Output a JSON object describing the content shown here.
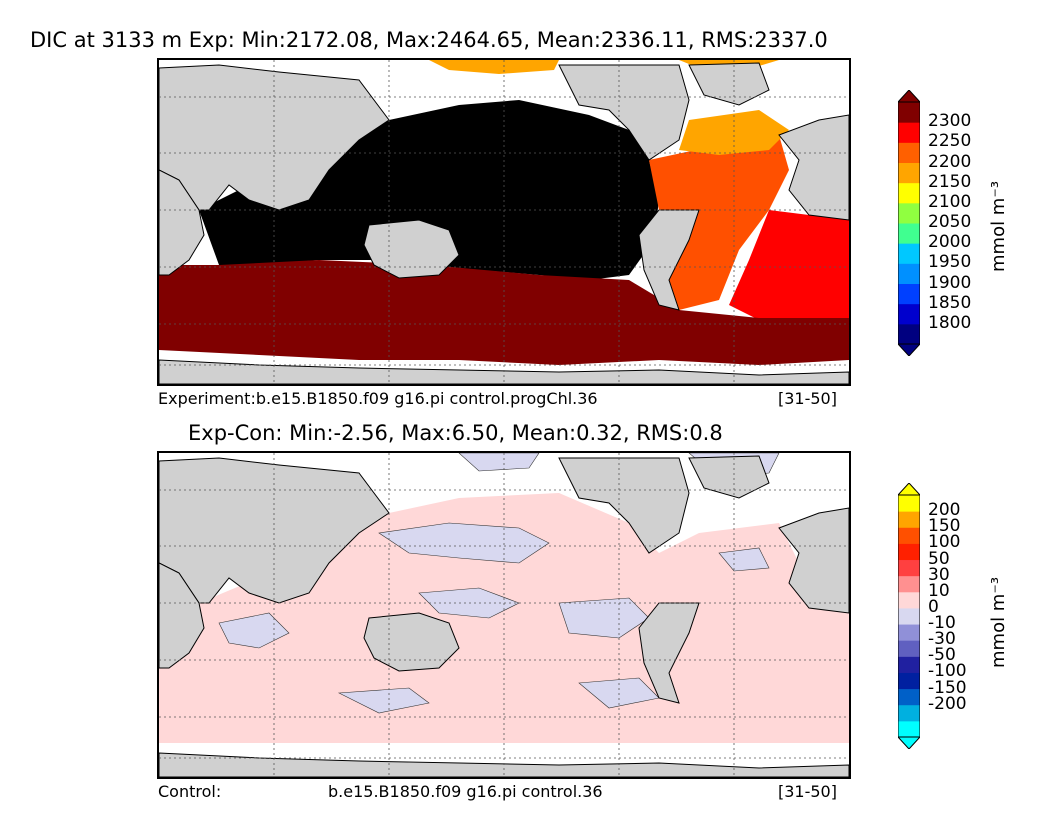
{
  "top_panel": {
    "title": "DIC at 3133 m Exp: Min:2172.08, Max:2464.65, Mean:2336.11, RMS:2337.0",
    "caption_left": "Experiment:b.e15.B1850.f09 g16.pi control.progChl.36",
    "caption_right": "[31-50]",
    "unit": "mmol m⁻³",
    "colorbar": {
      "labels": [
        "2300",
        "2250",
        "2200",
        "2150",
        "2100",
        "2050",
        "2000",
        "1950",
        "1900",
        "1850",
        "1800"
      ],
      "colors": [
        "#000080",
        "#0000cd",
        "#0040ff",
        "#0090ff",
        "#00c8ff",
        "#40ff90",
        "#90ff40",
        "#ffff00",
        "#ffa500",
        "#ff6000",
        "#ff0000",
        "#800000"
      ]
    }
  },
  "bottom_panel": {
    "title": "Exp-Con: Min:-2.56, Max:6.50, Mean:0.32, RMS:0.8",
    "caption_left": "Control:",
    "caption_mid": "b.e15.B1850.f09 g16.pi control.36",
    "caption_right": "[31-50]",
    "unit": "mmol m⁻³",
    "colorbar": {
      "labels": [
        "200",
        "150",
        "100",
        "50",
        "30",
        "10",
        "0",
        "-10",
        "-30",
        "-50",
        "-100",
        "-150",
        "-200"
      ],
      "colors": [
        "#00ffff",
        "#00b0e0",
        "#0060c8",
        "#0020a0",
        "#2020a0",
        "#6060c0",
        "#9090d8",
        "#d8d8f0",
        "#ffd8d8",
        "#ff9090",
        "#ff4040",
        "#ff2000",
        "#ff5000",
        "#ffa500",
        "#ffff00"
      ]
    }
  },
  "colors": {
    "land": "#d0d0d0",
    "dic_core": "#000000",
    "dic_southern": "#800000",
    "dic_atlantic": "#ff5000",
    "dic_north_atlantic": "#ffa500",
    "diff_positive": "#ffd8d8",
    "diff_negative": "#d8d8f0"
  }
}
